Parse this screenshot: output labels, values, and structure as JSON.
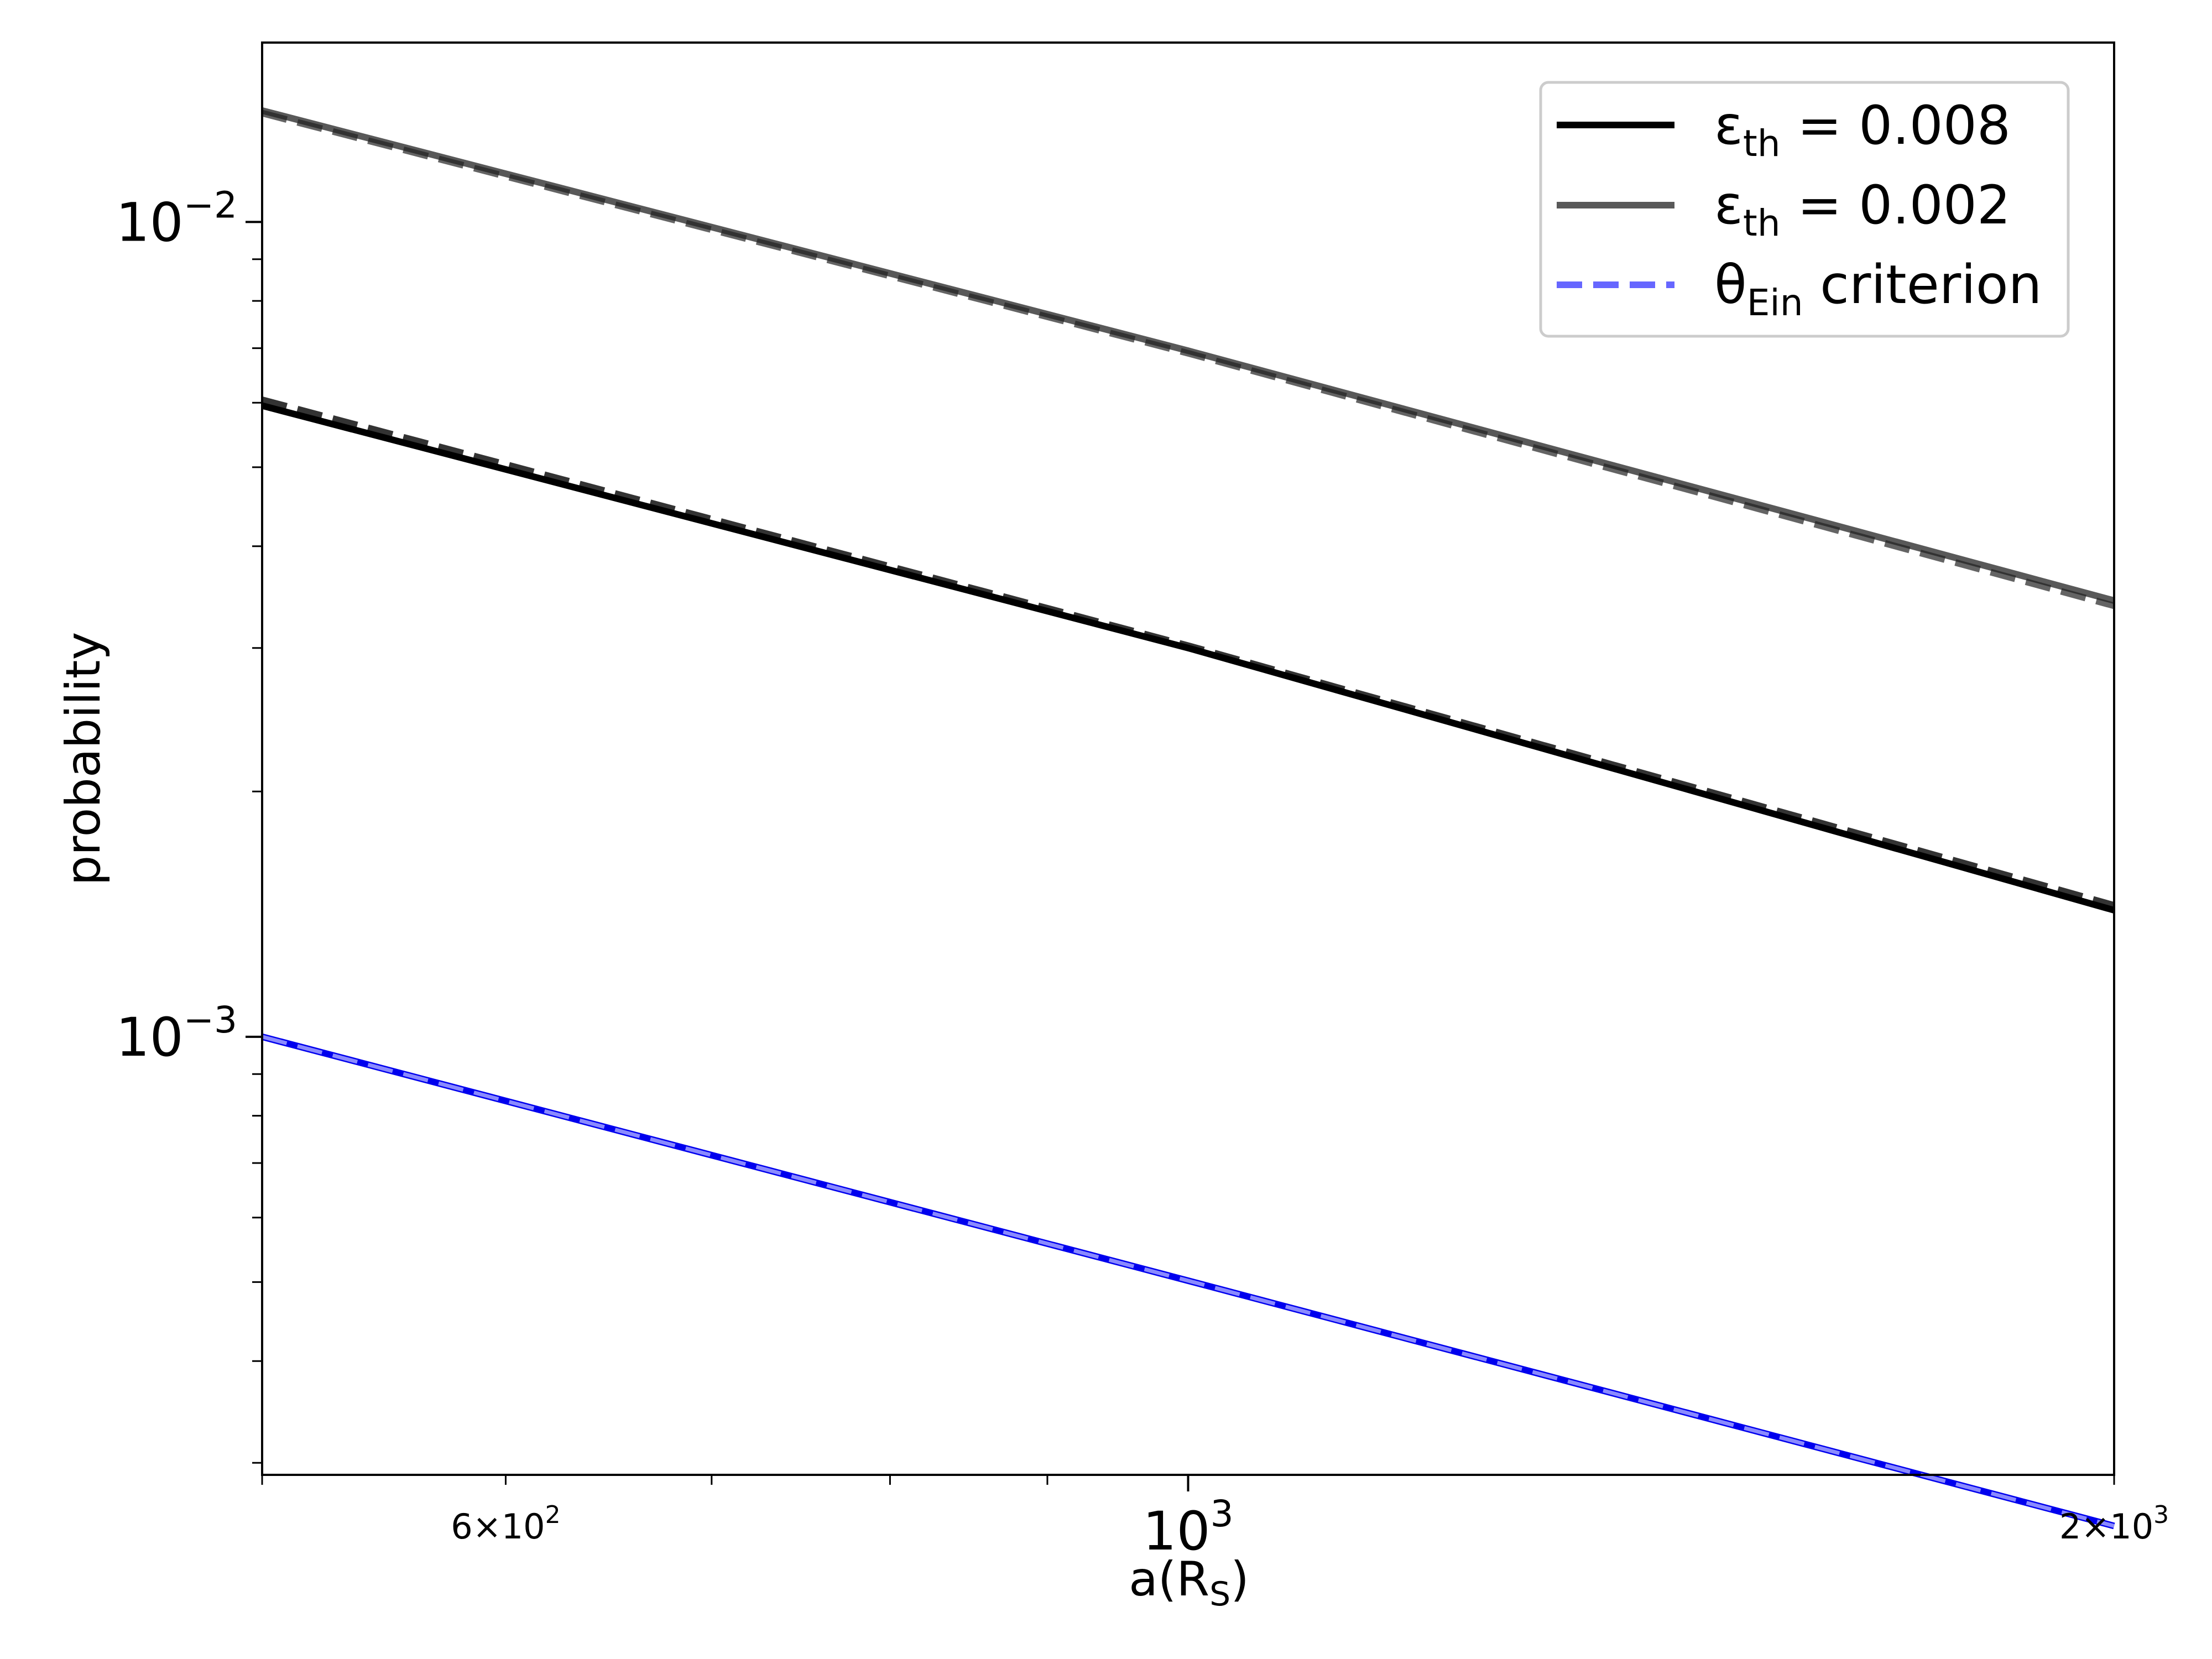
{
  "chart_data": {
    "type": "line",
    "xlabel": {
      "main": "a(R",
      "sub": "S",
      "close": ")"
    },
    "ylabel": "probability",
    "xscale": "log",
    "yscale": "log",
    "xlim": [
      500,
      2000
    ],
    "ylim": [
      0.00029,
      0.0166
    ],
    "grid": false,
    "legend_position": "top-right",
    "x_tick_labels": [
      {
        "value": 600,
        "mantissa": "6",
        "base": "10",
        "exp": "2",
        "size": "small"
      },
      {
        "value": 1000,
        "mantissa": "",
        "base": "10",
        "exp": "3",
        "size": "large"
      },
      {
        "value": 2000,
        "mantissa": "2",
        "base": "10",
        "exp": "3",
        "size": "small"
      }
    ],
    "y_tick_labels": [
      {
        "value": 0.01,
        "base": "10",
        "exp": "−2"
      },
      {
        "value": 0.001,
        "base": "10",
        "exp": "−3"
      }
    ],
    "legend": [
      {
        "symbol": "ε",
        "sub": "th",
        "text": " = 0.008",
        "color": "#000000",
        "style": "solid"
      },
      {
        "symbol": "ε",
        "sub": "th",
        "text": " = 0.002",
        "color": "#595959",
        "style": "solid"
      },
      {
        "symbol": "θ",
        "sub": "Ein",
        "text": " criterion",
        "color": "#6666ff",
        "style": "dashed"
      }
    ],
    "series": [
      {
        "style": "solid",
        "color": "#000000",
        "width": 12,
        "opacity": 1,
        "x": [
          500,
          1000,
          2000
        ],
        "y": [
          0.00595,
          0.003,
          0.00143
        ]
      },
      {
        "style": "dashed",
        "color": "#000000",
        "width": 12,
        "opacity": 0.8,
        "x": [
          500,
          1000,
          2000
        ],
        "y": [
          0.00605,
          0.00302,
          0.00145
        ]
      },
      {
        "style": "solid",
        "color": "#595959",
        "width": 12,
        "opacity": 1,
        "x": [
          500,
          1000,
          2000
        ],
        "y": [
          0.0137,
          0.00695,
          0.00343
        ]
      },
      {
        "style": "dashed",
        "color": "#222222",
        "width": 12,
        "opacity": 0.7,
        "x": [
          500,
          1000,
          2000
        ],
        "y": [
          0.0136,
          0.0069,
          0.00338
        ]
      },
      {
        "style": "solid",
        "color": "#0000ee",
        "width": 12,
        "opacity": 1,
        "x": [
          500,
          1000,
          2000
        ],
        "y": [
          0.001,
          0.000502,
          0.000251
        ]
      },
      {
        "style": "dashed",
        "color": "#9999ff",
        "width": 7,
        "opacity": 0.9,
        "x": [
          500,
          1000,
          2000
        ],
        "y": [
          0.001,
          0.000502,
          0.000251
        ]
      }
    ]
  }
}
